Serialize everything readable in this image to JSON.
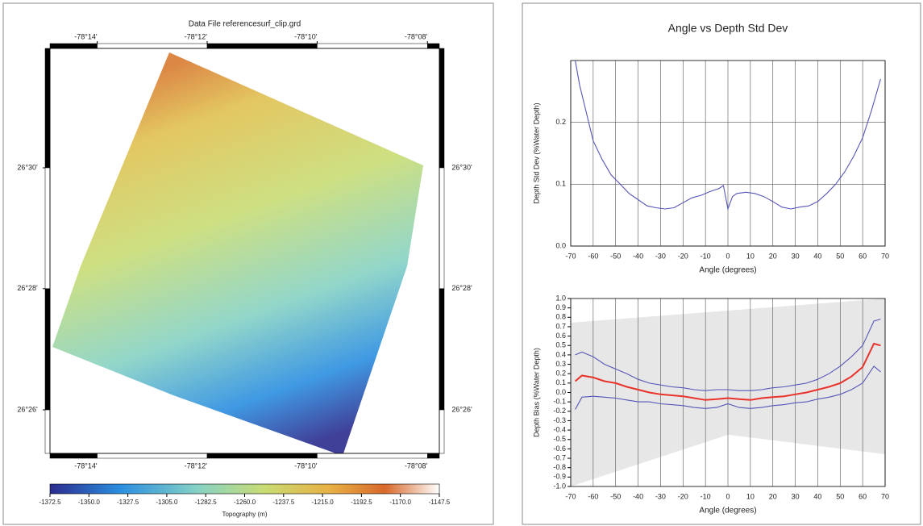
{
  "chart_data": [
    {
      "type": "map",
      "title": "Data File referencesurf_clip.grd",
      "xlim": [
        -78.2476,
        -78.1297
      ],
      "xticks": [
        {
          "value": -78.2333,
          "label": "-78°14'"
        },
        {
          "value": -78.2,
          "label": "-78°12'"
        },
        {
          "value": -78.1667,
          "label": "-78°10'"
        },
        {
          "value": -78.1333,
          "label": "-78°08'"
        }
      ],
      "ylim": [
        26.4213,
        26.5329
      ],
      "yticks": [
        {
          "value": 26.5,
          "label": "26°30'"
        },
        {
          "value": 26.4667,
          "label": "26°28'"
        },
        {
          "value": 26.4333,
          "label": "26°26'"
        }
      ],
      "colorbar": {
        "label": "Topography (m)",
        "lim": [
          -1372.5,
          -1147.5
        ],
        "ticks": [
          -1372.5,
          {
            "value": -1350,
            "label": "-1350.0"
          },
          -1327.5,
          {
            "value": -1305,
            "label": "-1305.0"
          },
          -1282.5,
          {
            "value": -1260,
            "label": "-1260.0"
          },
          -1237.5,
          {
            "value": -1215,
            "label": "-1215.0"
          },
          -1192.5,
          {
            "value": -1170,
            "label": "-1170.0"
          },
          -1147.5
        ]
      }
    },
    {
      "type": "line",
      "title": "Angle vs Depth Std Dev",
      "x_label": "Angle (degrees)",
      "y_label": "Depth Std Dev (%Water Depth)",
      "x": [
        -68,
        -66,
        -64,
        -62,
        -60,
        -56,
        -52,
        -48,
        -44,
        -40,
        -36,
        -32,
        -28,
        -24,
        -20,
        -16,
        -12,
        -8,
        -4,
        -2,
        0,
        2,
        4,
        8,
        12,
        16,
        20,
        24,
        28,
        32,
        36,
        40,
        44,
        48,
        52,
        56,
        60,
        64,
        68
      ],
      "series": [
        {
          "color": "#5656b8",
          "values": [
            0.3,
            0.26,
            0.23,
            0.2,
            0.17,
            0.14,
            0.115,
            0.1,
            0.085,
            0.075,
            0.065,
            0.062,
            0.06,
            0.062,
            0.07,
            0.078,
            0.082,
            0.088,
            0.093,
            0.098,
            0.06,
            0.08,
            0.085,
            0.087,
            0.085,
            0.08,
            0.072,
            0.063,
            0.06,
            0.063,
            0.065,
            0.072,
            0.085,
            0.1,
            0.12,
            0.145,
            0.175,
            0.22,
            0.27
          ]
        }
      ],
      "xlim": [
        -70,
        70
      ],
      "xticks": [
        -70,
        -60,
        -50,
        -40,
        -30,
        -20,
        -10,
        0,
        10,
        20,
        30,
        40,
        50,
        60,
        70
      ],
      "ylim": [
        0,
        0.3
      ],
      "yticks": [
        {
          "value": 0,
          "label": "0.0"
        },
        0.1,
        0.2
      ],
      "grid": true
    },
    {
      "type": "line",
      "x_label": "Angle (degrees)",
      "y_label": "Depth Bias (%Water Depth)",
      "x": [
        -68,
        -65,
        -60,
        -55,
        -50,
        -45,
        -40,
        -35,
        -30,
        -25,
        -20,
        -15,
        -10,
        -5,
        0,
        5,
        10,
        15,
        20,
        25,
        30,
        35,
        40,
        45,
        50,
        55,
        60,
        65,
        68
      ],
      "series": [
        {
          "color": "#5656b8",
          "values": [
            0.4,
            0.43,
            0.38,
            0.3,
            0.25,
            0.2,
            0.14,
            0.1,
            0.08,
            0.06,
            0.05,
            0.03,
            0.02,
            0.03,
            0.03,
            0.02,
            0.02,
            0.03,
            0.05,
            0.06,
            0.08,
            0.1,
            0.14,
            0.2,
            0.28,
            0.38,
            0.5,
            0.76,
            0.78
          ]
        },
        {
          "color": "#5656b8",
          "values": [
            -0.18,
            -0.05,
            -0.04,
            -0.05,
            -0.06,
            -0.08,
            -0.1,
            -0.1,
            -0.12,
            -0.13,
            -0.14,
            -0.16,
            -0.17,
            -0.16,
            -0.12,
            -0.16,
            -0.17,
            -0.16,
            -0.14,
            -0.13,
            -0.11,
            -0.1,
            -0.07,
            -0.05,
            -0.02,
            0.03,
            0.1,
            0.28,
            0.22
          ]
        },
        {
          "color": "#e8322a",
          "values": [
            0.12,
            0.18,
            0.16,
            0.12,
            0.1,
            0.06,
            0.03,
            0.0,
            -0.02,
            -0.03,
            -0.04,
            -0.06,
            -0.08,
            -0.07,
            -0.06,
            -0.07,
            -0.08,
            -0.06,
            -0.05,
            -0.04,
            -0.02,
            0.0,
            0.03,
            0.06,
            0.1,
            0.17,
            0.27,
            0.52,
            0.5
          ]
        }
      ],
      "xlim": [
        -70,
        70
      ],
      "xticks": [
        -70,
        -60,
        -50,
        -40,
        -30,
        -20,
        -10,
        0,
        10,
        20,
        30,
        40,
        50,
        60,
        70
      ],
      "ylim": [
        -1,
        1
      ],
      "yticks": [
        {
          "value": -1,
          "label": "-1.0"
        },
        -0.9,
        -0.8,
        -0.7,
        -0.6,
        -0.5,
        -0.4,
        -0.3,
        -0.2,
        -0.1,
        {
          "value": 0,
          "label": "0.0"
        },
        0.1,
        0.2,
        0.3,
        0.4,
        0.5,
        0.6,
        0.7,
        0.8,
        0.9,
        {
          "value": 1,
          "label": "1.0"
        }
      ],
      "grid": true
    }
  ]
}
